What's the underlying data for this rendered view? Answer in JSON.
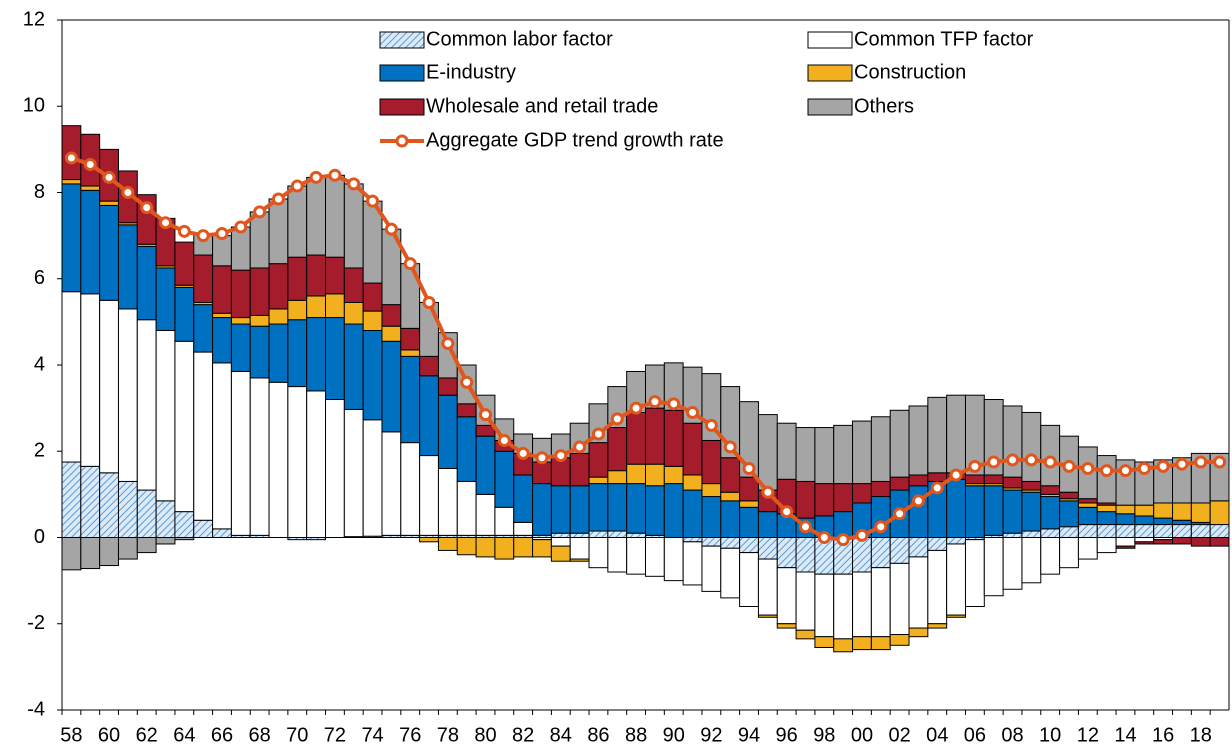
{
  "chart_data": {
    "type": "stacked_bar",
    "categories": [
      "58",
      null,
      "60",
      null,
      "62",
      null,
      "64",
      null,
      "66",
      null,
      "68",
      null,
      "70",
      null,
      "72",
      null,
      "74",
      null,
      "76",
      null,
      "78",
      null,
      "80",
      null,
      "82",
      null,
      "84",
      null,
      "86",
      null,
      "88",
      null,
      "90",
      null,
      "92",
      null,
      "94",
      null,
      "96",
      null,
      "98",
      null,
      "00",
      null,
      "02",
      null,
      "04",
      null,
      "06",
      null,
      "08",
      null,
      "10",
      null,
      "12",
      null,
      "14",
      null,
      "16",
      null,
      "18",
      null
    ],
    "ylim": [
      -4,
      12
    ],
    "yticks": [
      -4,
      -2,
      0,
      2,
      4,
      6,
      8,
      10,
      12
    ],
    "grid": false,
    "series": [
      {
        "name": "Common labor factor",
        "color": "#9dc3e6",
        "hatch": true,
        "values": [
          1.75,
          1.65,
          1.5,
          1.3,
          1.1,
          0.85,
          0.6,
          0.4,
          0.2,
          0.05,
          0.05,
          0,
          -0.05,
          -0.05,
          0,
          0.02,
          0.03,
          0.05,
          0.05,
          0.05,
          0.05,
          0.05,
          0.05,
          0.05,
          0.05,
          0.05,
          0.1,
          0.1,
          0.15,
          0.15,
          0.1,
          0.05,
          0,
          -0.1,
          -0.2,
          -0.25,
          -0.35,
          -0.5,
          -0.7,
          -0.8,
          -0.85,
          -0.85,
          -0.8,
          -0.7,
          -0.6,
          -0.45,
          -0.3,
          -0.15,
          -0.05,
          0.05,
          0.1,
          0.15,
          0.2,
          0.25,
          0.3,
          0.3,
          0.3,
          0.3,
          0.3,
          0.3,
          0.3,
          0.3
        ]
      },
      {
        "name": "Common TFP factor",
        "color": "#ffffff",
        "values": [
          3.95,
          4.0,
          4.0,
          4.0,
          3.95,
          3.95,
          3.95,
          3.9,
          3.85,
          3.8,
          3.65,
          3.6,
          3.5,
          3.4,
          3.2,
          2.95,
          2.7,
          2.4,
          2.15,
          1.85,
          1.55,
          1.25,
          0.95,
          0.65,
          0.3,
          -0.05,
          -0.2,
          -0.5,
          -0.7,
          -0.8,
          -0.85,
          -0.9,
          -1.0,
          -1.0,
          -1.05,
          -1.15,
          -1.25,
          -1.3,
          -1.3,
          -1.35,
          -1.45,
          -1.5,
          -1.5,
          -1.6,
          -1.65,
          -1.65,
          -1.7,
          -1.65,
          -1.55,
          -1.35,
          -1.2,
          -1.05,
          -0.85,
          -0.7,
          -0.5,
          -0.35,
          -0.2,
          -0.1,
          -0.05,
          0,
          0,
          0
        ]
      },
      {
        "name": "E-industry",
        "color": "#0070c0",
        "values": [
          2.5,
          2.4,
          2.2,
          1.95,
          1.7,
          1.45,
          1.25,
          1.1,
          1.05,
          1.1,
          1.2,
          1.35,
          1.55,
          1.7,
          1.9,
          1.98,
          2.07,
          2.1,
          2.0,
          1.85,
          1.7,
          1.5,
          1.35,
          1.3,
          1.1,
          1.2,
          1.1,
          1.1,
          1.1,
          1.1,
          1.15,
          1.15,
          1.25,
          1.1,
          0.95,
          0.85,
          0.7,
          0.6,
          0.55,
          0.45,
          0.5,
          0.6,
          0.8,
          0.95,
          1.1,
          1.2,
          1.3,
          1.35,
          1.2,
          1.15,
          1.0,
          0.9,
          0.75,
          0.6,
          0.4,
          0.3,
          0.25,
          0.2,
          0.15,
          0.1,
          0.05,
          0
        ]
      },
      {
        "name": "Construction",
        "color": "#f2b01e",
        "values": [
          0.1,
          0.1,
          0.1,
          0.05,
          0.05,
          0.05,
          0.05,
          0.05,
          0.1,
          0.15,
          0.25,
          0.35,
          0.45,
          0.5,
          0.55,
          0.5,
          0.45,
          0.35,
          0.15,
          -0.1,
          -0.3,
          -0.4,
          -0.45,
          -0.5,
          -0.45,
          -0.4,
          -0.35,
          -0.05,
          0.15,
          0.3,
          0.45,
          0.5,
          0.4,
          0.35,
          0.3,
          0.2,
          0.15,
          -0.05,
          -0.1,
          -0.2,
          -0.25,
          -0.3,
          -0.3,
          -0.3,
          -0.25,
          -0.2,
          -0.1,
          -0.05,
          0.05,
          0.05,
          0.05,
          0.05,
          0.05,
          0.05,
          0.1,
          0.15,
          0.2,
          0.25,
          0.35,
          0.4,
          0.45,
          0.55
        ]
      },
      {
        "name": "Wholesale and retail trade",
        "color": "#a51d2d",
        "values": [
          1.25,
          1.2,
          1.2,
          1.2,
          1.15,
          1.1,
          1.0,
          1.1,
          1.1,
          1.1,
          1.1,
          1.05,
          1.0,
          0.95,
          0.85,
          0.8,
          0.65,
          0.5,
          0.5,
          0.45,
          0.4,
          0.3,
          0.25,
          0.25,
          0.5,
          0.5,
          0.65,
          0.75,
          0.8,
          1.0,
          1.2,
          1.3,
          1.3,
          1.2,
          1.0,
          0.8,
          0.55,
          0.5,
          0.8,
          0.85,
          0.75,
          0.65,
          0.45,
          0.35,
          0.3,
          0.25,
          0.2,
          0.15,
          0.2,
          0.2,
          0.25,
          0.2,
          0.2,
          0.15,
          0.1,
          0.05,
          -0.05,
          -0.05,
          -0.1,
          -0.15,
          -0.2,
          -0.2
        ]
      },
      {
        "name": "Others",
        "color": "#a5a5a5",
        "values": [
          -0.75,
          -0.72,
          -0.65,
          -0.5,
          -0.35,
          -0.15,
          -0.05,
          0.5,
          0.7,
          1.0,
          1.3,
          1.5,
          1.65,
          1.8,
          1.9,
          1.95,
          1.9,
          1.75,
          1.5,
          1.25,
          1.05,
          0.9,
          0.7,
          0.5,
          0.45,
          0.55,
          0.55,
          0.7,
          0.9,
          0.95,
          0.95,
          1.0,
          1.1,
          1.3,
          1.55,
          1.65,
          1.75,
          1.75,
          1.3,
          1.25,
          1.3,
          1.35,
          1.45,
          1.5,
          1.55,
          1.6,
          1.75,
          1.8,
          1.85,
          1.75,
          1.65,
          1.6,
          1.4,
          1.3,
          1.2,
          1.1,
          1.05,
          1.0,
          1.0,
          1.05,
          1.15,
          1.1
        ]
      },
      {
        "name": "Aggregate GDP trend growth rate",
        "type": "line",
        "color": "#e0561c",
        "values": [
          8.8,
          8.65,
          8.35,
          8.0,
          7.65,
          7.3,
          7.1,
          7.0,
          7.05,
          7.2,
          7.55,
          7.85,
          8.15,
          8.35,
          8.4,
          8.2,
          7.8,
          7.15,
          6.35,
          5.45,
          4.5,
          3.6,
          2.85,
          2.25,
          1.95,
          1.85,
          1.9,
          2.1,
          2.4,
          2.75,
          3.0,
          3.15,
          3.1,
          2.9,
          2.6,
          2.1,
          1.6,
          1.05,
          0.6,
          0.25,
          0.0,
          -0.05,
          0.05,
          0.25,
          0.55,
          0.85,
          1.15,
          1.45,
          1.65,
          1.75,
          1.8,
          1.8,
          1.75,
          1.65,
          1.6,
          1.55,
          1.55,
          1.6,
          1.65,
          1.7,
          1.75,
          1.75
        ]
      }
    ]
  }
}
